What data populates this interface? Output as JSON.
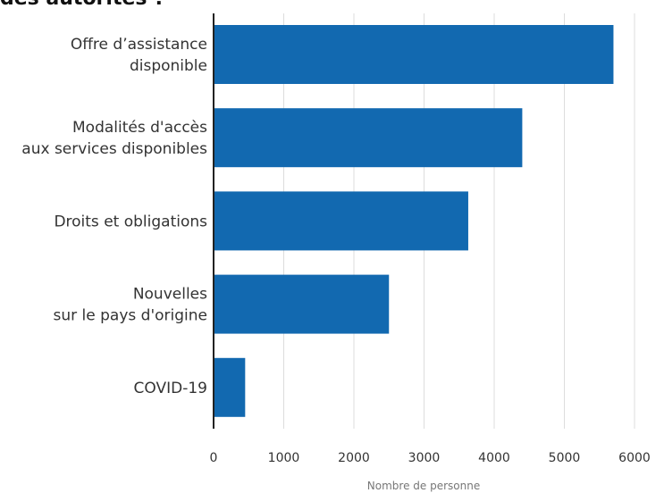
{
  "chart_data": {
    "type": "bar",
    "orientation": "horizontal",
    "title": "des autorités ?",
    "categories": [
      [
        "Offre d’assistance",
        "disponible"
      ],
      [
        "Modalités d'accès",
        "aux services disponibles"
      ],
      [
        "Droits et obligations"
      ],
      [
        "Nouvelles",
        "sur le pays d'origine"
      ],
      [
        "COVID-19"
      ]
    ],
    "values": [
      5700,
      4400,
      3630,
      2500,
      450
    ],
    "color": "#1269b0",
    "xlabel": "Nombre de personne",
    "xlim": [
      0,
      6000
    ],
    "xticks": [
      0,
      1000,
      2000,
      3000,
      4000,
      5000,
      6000
    ],
    "grid": true
  }
}
